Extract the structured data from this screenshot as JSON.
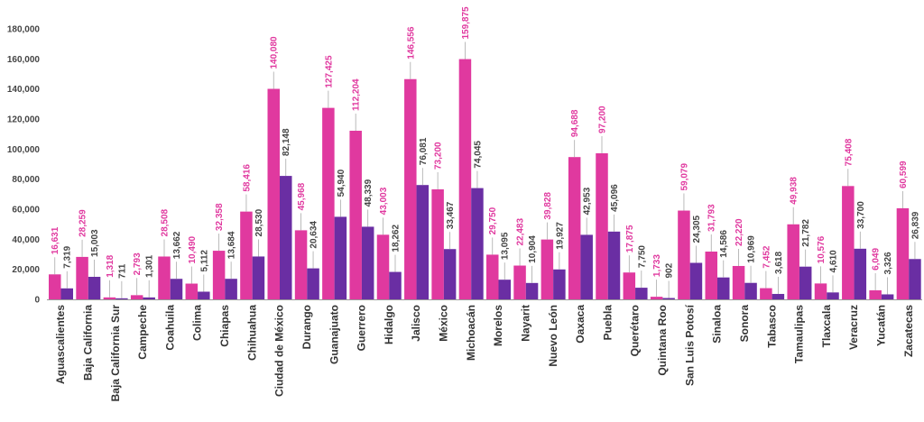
{
  "chart_data": {
    "type": "bar",
    "ylim": [
      0,
      180000
    ],
    "yticks": [
      "0",
      "20,000",
      "40,000",
      "60,000",
      "80,000",
      "100,000",
      "120,000",
      "140,000",
      "160,000",
      "180,000"
    ],
    "categories": [
      "Aguascalientes",
      "Baja California",
      "Baja California Sur",
      "Campeche",
      "Coahuila",
      "Colima",
      "Chiapas",
      "Chihuahua",
      "Ciudad de México",
      "Durango",
      "Guanajuato",
      "Guerrero",
      "Hidalgo",
      "Jalisco",
      "México",
      "Michoacán",
      "Morelos",
      "Nayarit",
      "Nuevo León",
      "Oaxaca",
      "Puebla",
      "Querétaro",
      "Quintana Roo",
      "San Luis Potosí",
      "Sinaloa",
      "Sonora",
      "Tabasco",
      "Tamaulipas",
      "Tlaxcala",
      "Veracruz",
      "Yucatán",
      "Zacatecas"
    ],
    "series": [
      {
        "color": "#e0399f",
        "values": [
          16631,
          28259,
          1318,
          2793,
          28508,
          10490,
          32358,
          58416,
          140080,
          45968,
          127425,
          112204,
          43003,
          146556,
          73200,
          159875,
          29750,
          22483,
          39828,
          94688,
          97200,
          17875,
          1733,
          59079,
          31793,
          22220,
          7452,
          49938,
          10576,
          75408,
          6049,
          60599
        ],
        "labels": [
          "16,631",
          "28,259",
          "1,318",
          "2,793",
          "28,508",
          "10,490",
          "32,358",
          "58,416",
          "140,080",
          "45,968",
          "127,425",
          "112,204",
          "43,003",
          "146,556",
          "73,200",
          "159,875",
          "29,750",
          "22,483",
          "39,828",
          "94,688",
          "97,200",
          "17,875",
          "1,733",
          "59,079",
          "31,793",
          "22,220",
          "7,452",
          "49,938",
          "10,576",
          "75,408",
          "6,049",
          "60,599"
        ]
      },
      {
        "color": "#6a2ea3",
        "values": [
          7319,
          15003,
          711,
          1301,
          13662,
          5112,
          13684,
          28530,
          82148,
          20634,
          54940,
          48339,
          18262,
          76081,
          33467,
          74045,
          13095,
          10904,
          19927,
          42953,
          45096,
          7750,
          902,
          24305,
          14586,
          10969,
          3618,
          21782,
          4610,
          33700,
          3326,
          26839
        ],
        "labels": [
          "7,319",
          "15,003",
          "711",
          "1,301",
          "13,662",
          "5,112",
          "13,684",
          "28,530",
          "82,148",
          "20,634",
          "54,940",
          "48,339",
          "18,262",
          "76,081",
          "33,467",
          "74,045",
          "13,095",
          "10,904",
          "19,927",
          "42,953",
          "45,096",
          "7,750",
          "902",
          "24,305",
          "14,586",
          "10,969",
          "3,618",
          "21,782",
          "4,610",
          "33,700",
          "3,326",
          "26,839"
        ]
      }
    ],
    "label_colors": [
      "#e0399f",
      "#444444"
    ],
    "leader_color": "#aaaaaa"
  }
}
